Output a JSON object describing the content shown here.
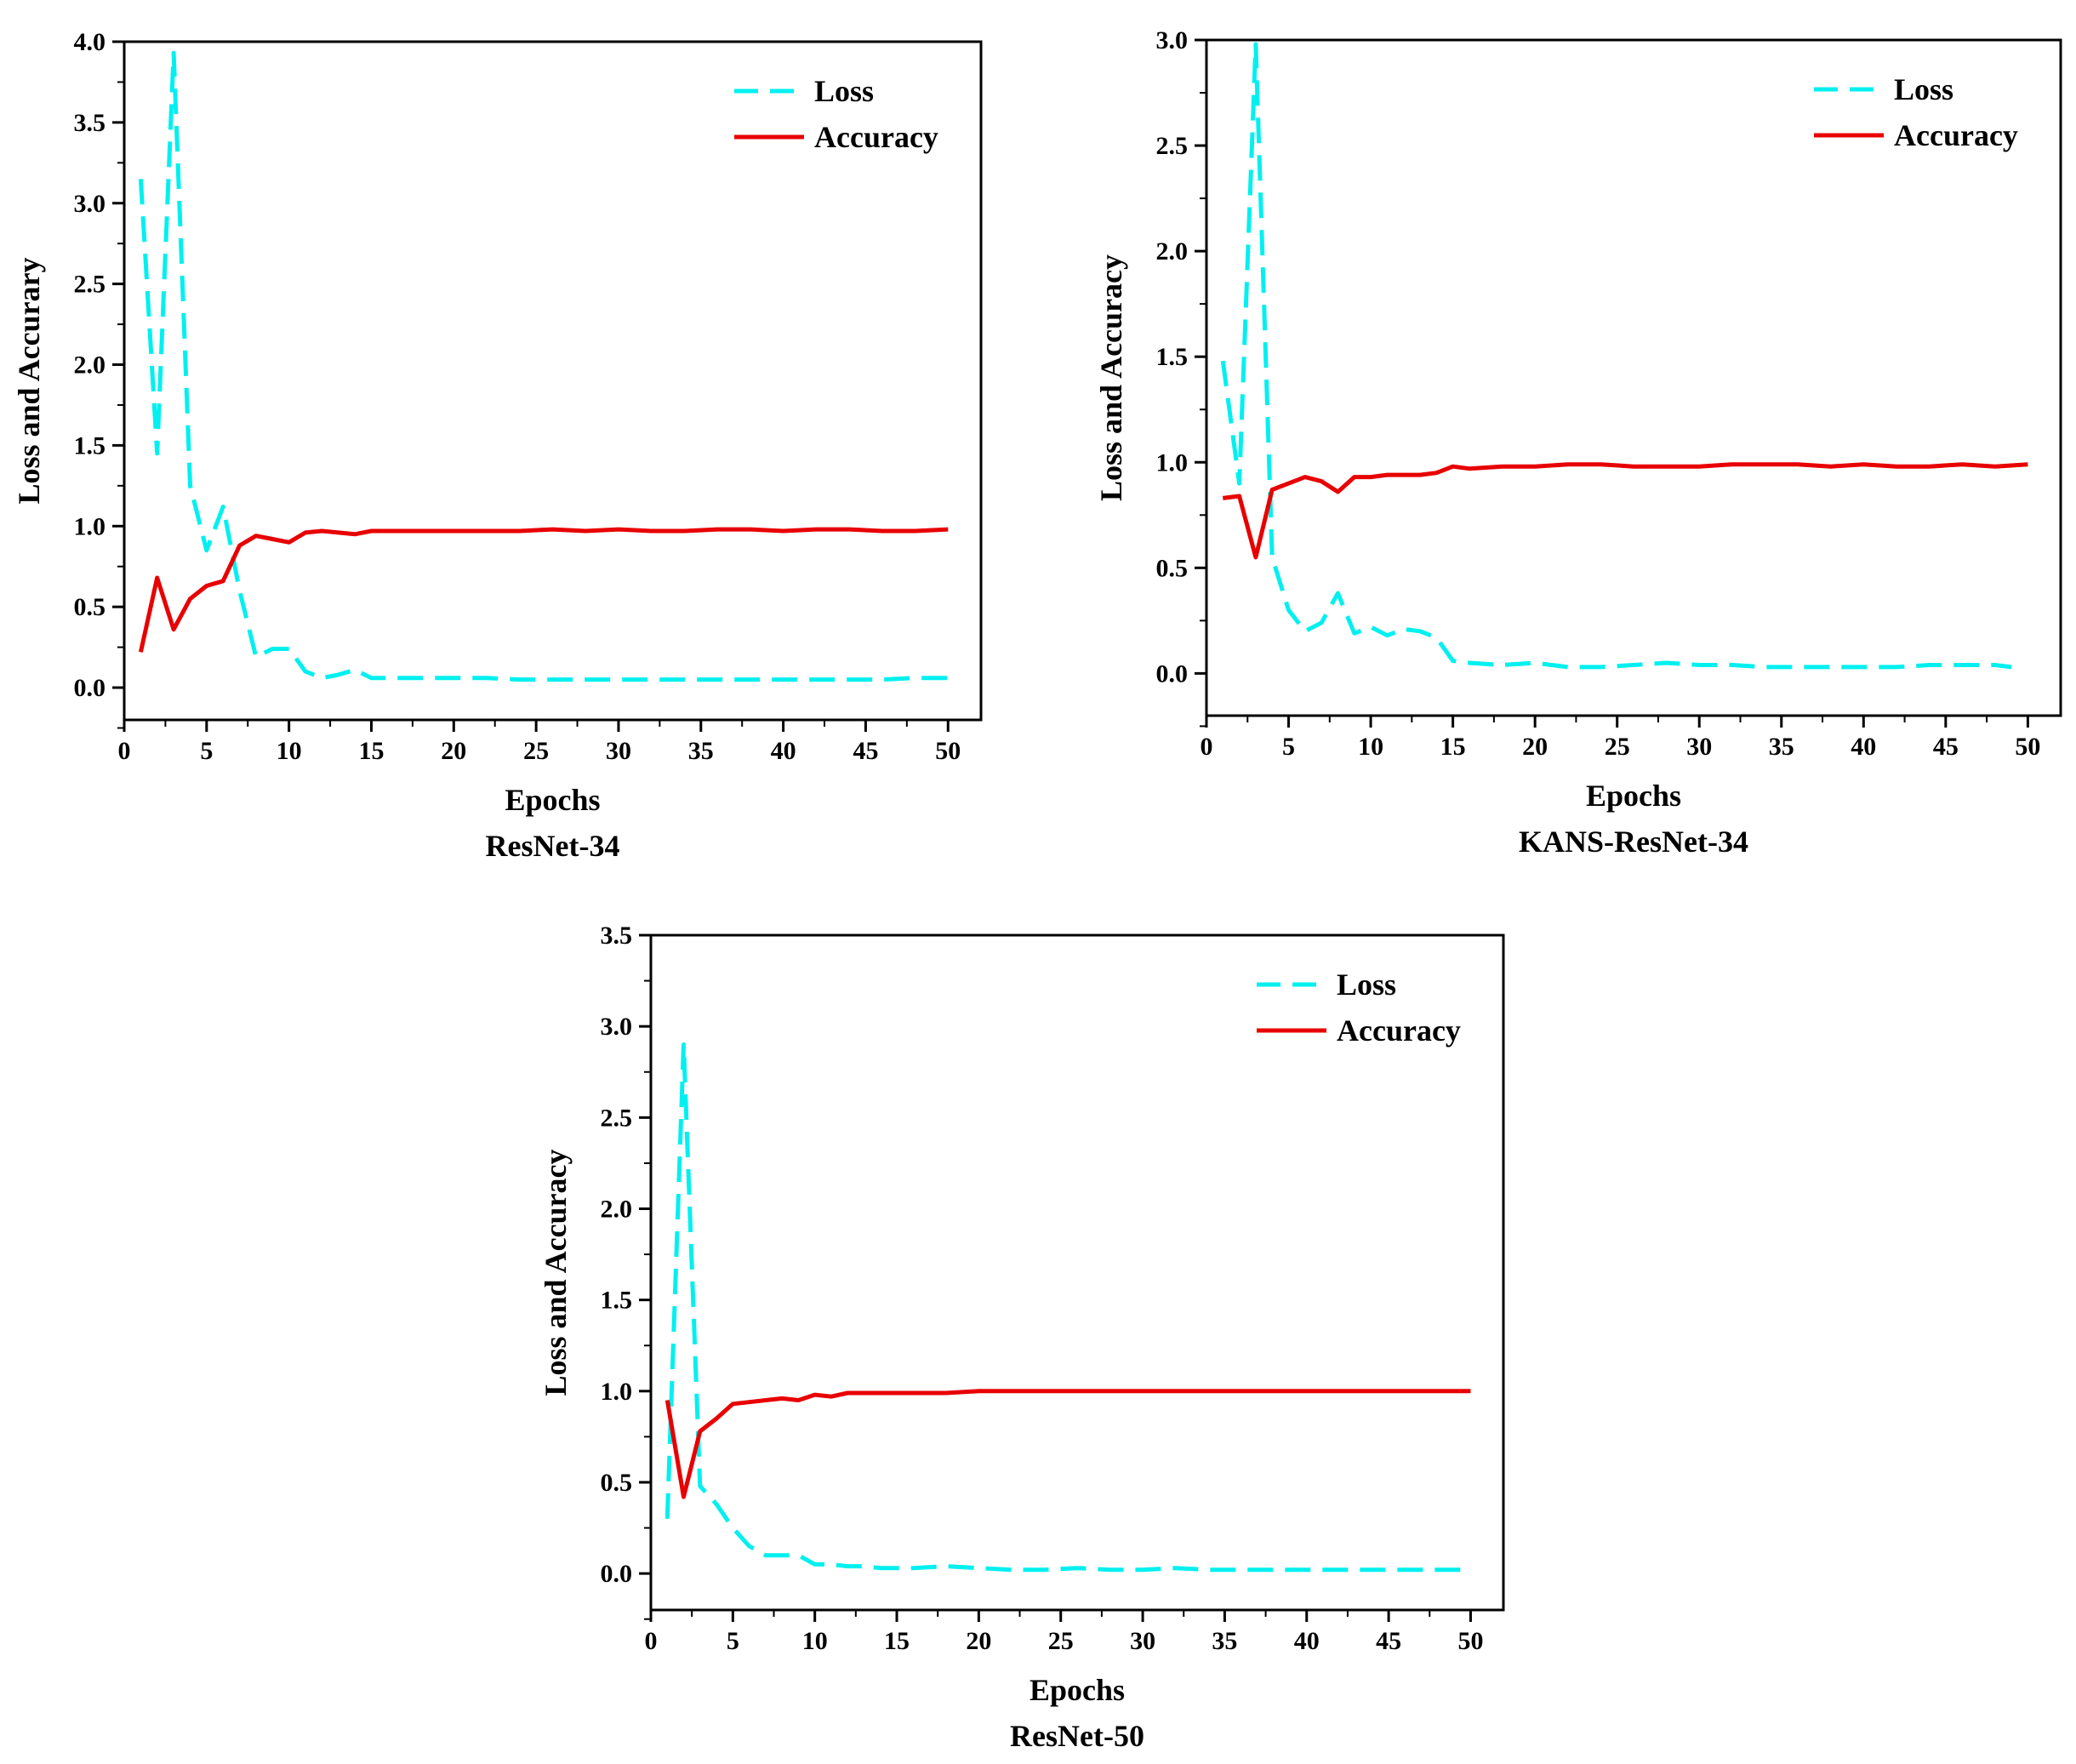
{
  "colors": {
    "loss": "#00f0f0",
    "accuracy": "#e80000",
    "axis": "#000000"
  },
  "chart_data": [
    {
      "type": "line",
      "title": "ResNet-34",
      "xlabel": "Epochs",
      "ylabel": "Loss and Accurary",
      "xlim": [
        0,
        52
      ],
      "ylim": [
        -0.2,
        4.0
      ],
      "xticks": [
        0,
        5,
        10,
        15,
        20,
        25,
        30,
        35,
        40,
        45,
        50
      ],
      "xtick_labels": [
        "0",
        "5",
        "10",
        "15",
        "20",
        "25",
        "30",
        "35",
        "40",
        "45",
        "50"
      ],
      "yticks": [
        0,
        0.5,
        1.0,
        1.5,
        2.0,
        2.5,
        3.0,
        3.5,
        4.0
      ],
      "ytick_labels": [
        "0.0",
        "0.5",
        "1.0",
        "1.5",
        "2.0",
        "2.5",
        "3.0",
        "3.5",
        "4.0"
      ],
      "legend": [
        "Loss",
        "Accuracy"
      ],
      "legend_position": "top-right",
      "series": [
        {
          "name": "Loss",
          "style": "dashed",
          "x": [
            1,
            2,
            3,
            4,
            5,
            6,
            7,
            8,
            9,
            10,
            11,
            12,
            13,
            14,
            15,
            16,
            18,
            20,
            22,
            24,
            26,
            28,
            30,
            32,
            34,
            36,
            38,
            40,
            42,
            44,
            46,
            48,
            50
          ],
          "values": [
            3.15,
            1.45,
            3.93,
            1.25,
            0.85,
            1.12,
            0.6,
            0.19,
            0.24,
            0.24,
            0.1,
            0.06,
            0.08,
            0.11,
            0.06,
            0.06,
            0.06,
            0.06,
            0.06,
            0.05,
            0.05,
            0.05,
            0.05,
            0.05,
            0.05,
            0.05,
            0.05,
            0.05,
            0.05,
            0.05,
            0.05,
            0.06,
            0.06
          ]
        },
        {
          "name": "Accuracy",
          "style": "solid",
          "x": [
            1,
            2,
            3,
            4,
            5,
            6,
            7,
            8,
            9,
            10,
            11,
            12,
            13,
            14,
            15,
            16,
            18,
            20,
            22,
            24,
            26,
            28,
            30,
            32,
            34,
            36,
            38,
            40,
            42,
            44,
            46,
            48,
            50
          ],
          "values": [
            0.22,
            0.68,
            0.36,
            0.55,
            0.63,
            0.66,
            0.88,
            0.94,
            0.92,
            0.9,
            0.96,
            0.97,
            0.96,
            0.95,
            0.97,
            0.97,
            0.97,
            0.97,
            0.97,
            0.97,
            0.98,
            0.97,
            0.98,
            0.97,
            0.97,
            0.98,
            0.98,
            0.97,
            0.98,
            0.98,
            0.97,
            0.97,
            0.98
          ]
        }
      ]
    },
    {
      "type": "line",
      "title": "KANS-ResNet-34",
      "xlabel": "Epochs",
      "ylabel": "Loss and Accuracy",
      "xlim": [
        0,
        52
      ],
      "ylim": [
        -0.2,
        3.0
      ],
      "xticks": [
        0,
        5,
        10,
        15,
        20,
        25,
        30,
        35,
        40,
        45,
        50
      ],
      "xtick_labels": [
        "0",
        "5",
        "10",
        "15",
        "20",
        "25",
        "30",
        "35",
        "40",
        "45",
        "50"
      ],
      "yticks": [
        0,
        0.5,
        1.0,
        1.5,
        2.0,
        2.5,
        3.0
      ],
      "ytick_labels": [
        "0.0",
        "0.5",
        "1.0",
        "1.5",
        "2.0",
        "2.5",
        "3.0"
      ],
      "legend": [
        "Loss",
        "Accuracy"
      ],
      "legend_position": "top-right",
      "series": [
        {
          "name": "Loss",
          "style": "dashed",
          "x": [
            1,
            2,
            3,
            4,
            5,
            6,
            7,
            8,
            9,
            10,
            11,
            12,
            13,
            14,
            15,
            16,
            18,
            20,
            22,
            24,
            26,
            28,
            30,
            32,
            34,
            36,
            38,
            40,
            42,
            44,
            46,
            48,
            49
          ],
          "values": [
            1.48,
            0.9,
            2.98,
            0.55,
            0.3,
            0.2,
            0.24,
            0.38,
            0.19,
            0.22,
            0.18,
            0.21,
            0.2,
            0.17,
            0.06,
            0.05,
            0.04,
            0.05,
            0.03,
            0.03,
            0.04,
            0.05,
            0.04,
            0.04,
            0.03,
            0.03,
            0.03,
            0.03,
            0.03,
            0.04,
            0.04,
            0.04,
            0.03
          ]
        },
        {
          "name": "Accuracy",
          "style": "solid",
          "x": [
            1,
            2,
            3,
            4,
            5,
            6,
            7,
            8,
            9,
            10,
            11,
            12,
            13,
            14,
            15,
            16,
            18,
            20,
            22,
            24,
            26,
            28,
            30,
            32,
            34,
            36,
            38,
            40,
            42,
            44,
            46,
            48,
            50
          ],
          "values": [
            0.83,
            0.84,
            0.55,
            0.87,
            0.9,
            0.93,
            0.91,
            0.86,
            0.93,
            0.93,
            0.94,
            0.94,
            0.94,
            0.95,
            0.98,
            0.97,
            0.98,
            0.98,
            0.99,
            0.99,
            0.98,
            0.98,
            0.98,
            0.99,
            0.99,
            0.99,
            0.98,
            0.99,
            0.98,
            0.98,
            0.99,
            0.98,
            0.99
          ]
        }
      ]
    },
    {
      "type": "line",
      "title": "ResNet-50",
      "xlabel": "Epochs",
      "ylabel": "Loss and Accuracy",
      "xlim": [
        0,
        52
      ],
      "ylim": [
        -0.2,
        3.5
      ],
      "xticks": [
        0,
        5,
        10,
        15,
        20,
        25,
        30,
        35,
        40,
        45,
        50
      ],
      "xtick_labels": [
        "0",
        "5",
        "10",
        "15",
        "20",
        "25",
        "30",
        "35",
        "40",
        "45",
        "50"
      ],
      "yticks": [
        0,
        0.5,
        1.0,
        1.5,
        2.0,
        2.5,
        3.0,
        3.5
      ],
      "ytick_labels": [
        "0.0",
        "0.5",
        "1.0",
        "1.5",
        "2.0",
        "2.5",
        "3.0",
        "3.5"
      ],
      "legend": [
        "Loss",
        "Accuracy"
      ],
      "legend_position": "top-right",
      "series": [
        {
          "name": "Loss",
          "style": "dashed",
          "x": [
            1,
            2,
            3,
            4,
            5,
            6,
            7,
            8,
            9,
            10,
            11,
            12,
            13,
            14,
            15,
            16,
            18,
            20,
            22,
            24,
            26,
            28,
            30,
            32,
            34,
            36,
            38,
            40,
            42,
            44,
            46,
            48,
            50
          ],
          "values": [
            0.3,
            2.9,
            0.48,
            0.38,
            0.25,
            0.15,
            0.1,
            0.1,
            0.1,
            0.05,
            0.05,
            0.04,
            0.04,
            0.03,
            0.03,
            0.03,
            0.04,
            0.03,
            0.02,
            0.02,
            0.03,
            0.02,
            0.02,
            0.03,
            0.02,
            0.02,
            0.02,
            0.02,
            0.02,
            0.02,
            0.02,
            0.02,
            0.02
          ]
        },
        {
          "name": "Accuracy",
          "style": "solid",
          "x": [
            1,
            2,
            3,
            4,
            5,
            6,
            7,
            8,
            9,
            10,
            11,
            12,
            13,
            14,
            15,
            16,
            18,
            20,
            22,
            24,
            26,
            28,
            30,
            32,
            34,
            36,
            38,
            40,
            42,
            44,
            46,
            48,
            50
          ],
          "values": [
            0.95,
            0.42,
            0.78,
            0.85,
            0.93,
            0.94,
            0.95,
            0.96,
            0.95,
            0.98,
            0.97,
            0.99,
            0.99,
            0.99,
            0.99,
            0.99,
            0.99,
            1.0,
            1.0,
            1.0,
            1.0,
            1.0,
            1.0,
            1.0,
            1.0,
            1.0,
            1.0,
            1.0,
            1.0,
            1.0,
            1.0,
            1.0,
            1.0
          ]
        }
      ]
    }
  ]
}
